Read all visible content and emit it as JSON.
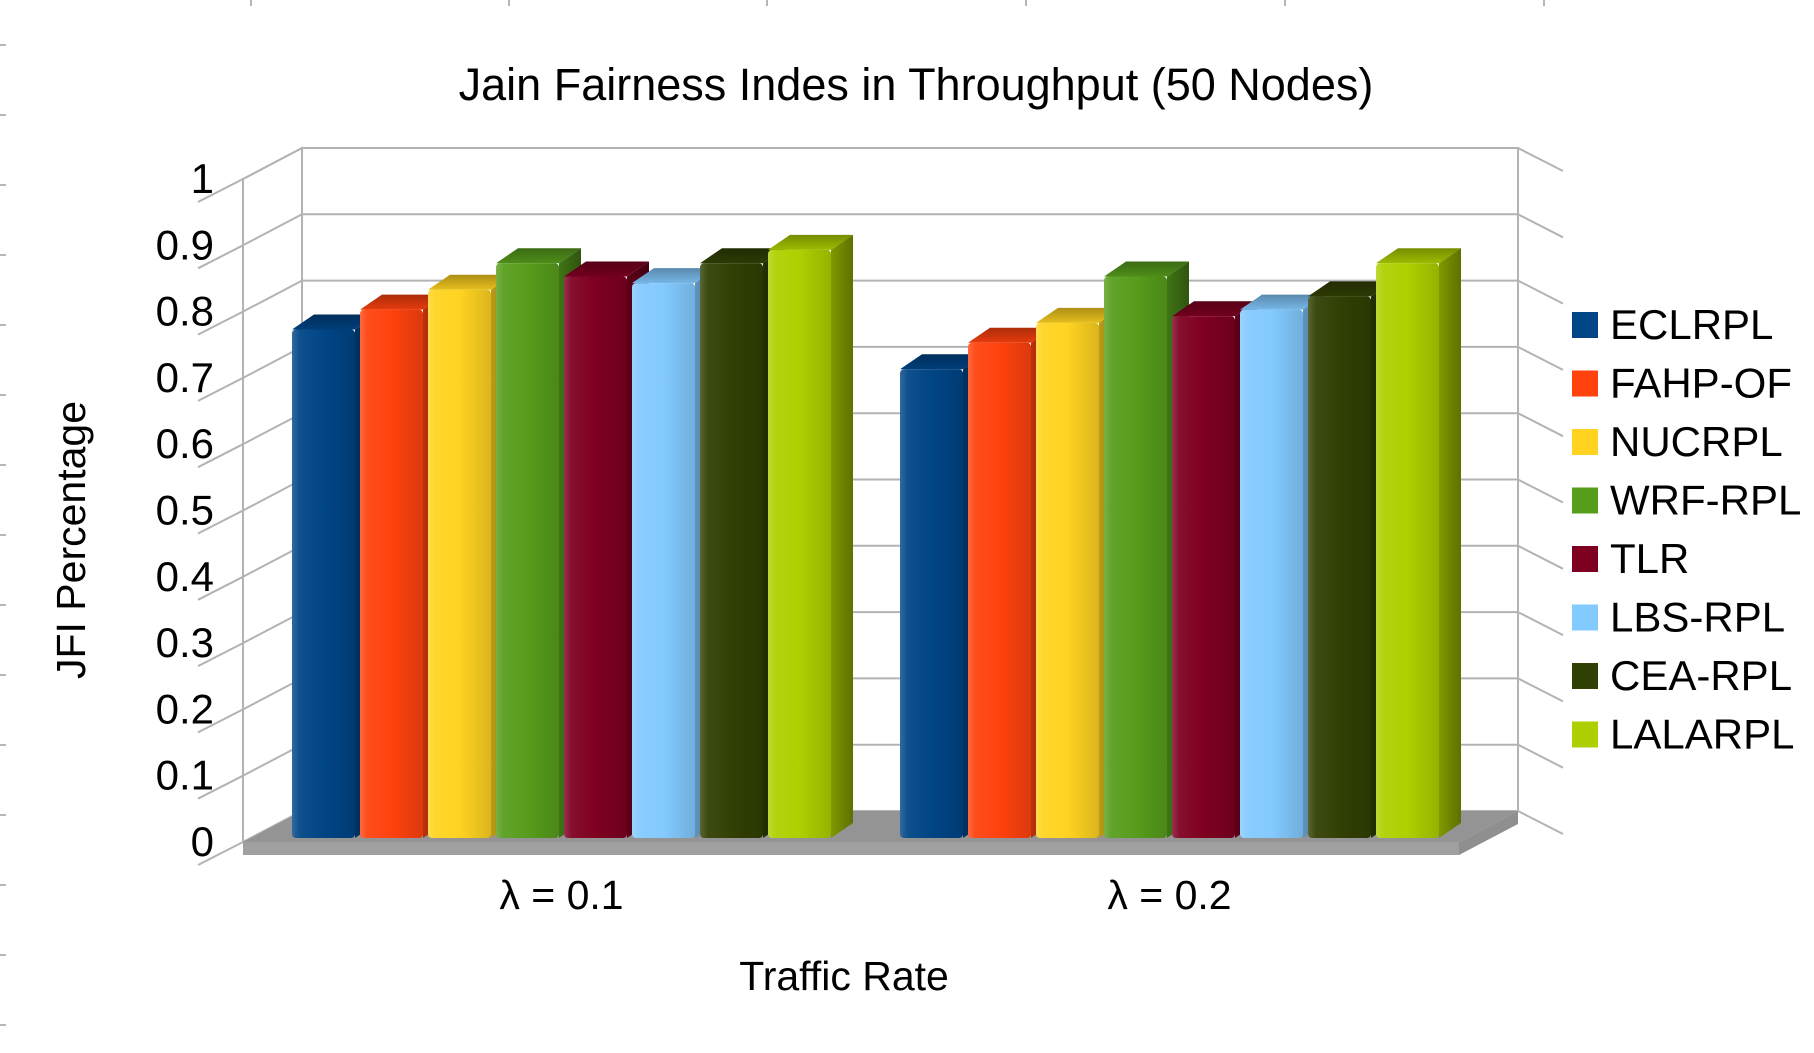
{
  "page": {
    "background": "#FFFFFF"
  },
  "chart_data": {
    "type": "bar",
    "projection": "3d",
    "title": "Jain Fairness Indes in Throughput (50 Nodes)",
    "xlabel": "Traffic Rate",
    "ylabel": "JFI Percentage",
    "categories": [
      "λ = 0.1",
      "λ = 0.2"
    ],
    "series": [
      {
        "name": "ECLRPL",
        "color": "#004586",
        "values": [
          0.77,
          0.71
        ]
      },
      {
        "name": "FAHP-OF",
        "color": "#FF420E",
        "values": [
          0.8,
          0.75
        ]
      },
      {
        "name": "NUCRPL",
        "color": "#FFD320",
        "values": [
          0.83,
          0.78
        ]
      },
      {
        "name": "WRF-RPL",
        "color": "#579D1C",
        "values": [
          0.87,
          0.85
        ]
      },
      {
        "name": "TLR",
        "color": "#7E0021",
        "values": [
          0.85,
          0.79
        ]
      },
      {
        "name": "LBS-RPL",
        "color": "#83CAFF",
        "values": [
          0.84,
          0.8
        ]
      },
      {
        "name": "CEA-RPL",
        "color": "#314004",
        "values": [
          0.87,
          0.82
        ]
      },
      {
        "name": "LALARPL",
        "color": "#AECF00",
        "values": [
          0.89,
          0.87
        ]
      }
    ],
    "ylim": [
      0,
      1
    ],
    "ytick_step": 0.1,
    "ytick_labels": [
      "0",
      "0.1",
      "0.2",
      "0.3",
      "0.4",
      "0.5",
      "0.6",
      "0.7",
      "0.8",
      "0.9",
      "1"
    ],
    "grid": true,
    "legend_position": "right",
    "colors": {
      "grid": "#B3B3B3",
      "wall": "#FFFFFF",
      "floor_top": "#949494",
      "floor_front": "#A0A0A0",
      "floor_side": "#8F8F8F",
      "text": "#000000"
    }
  }
}
